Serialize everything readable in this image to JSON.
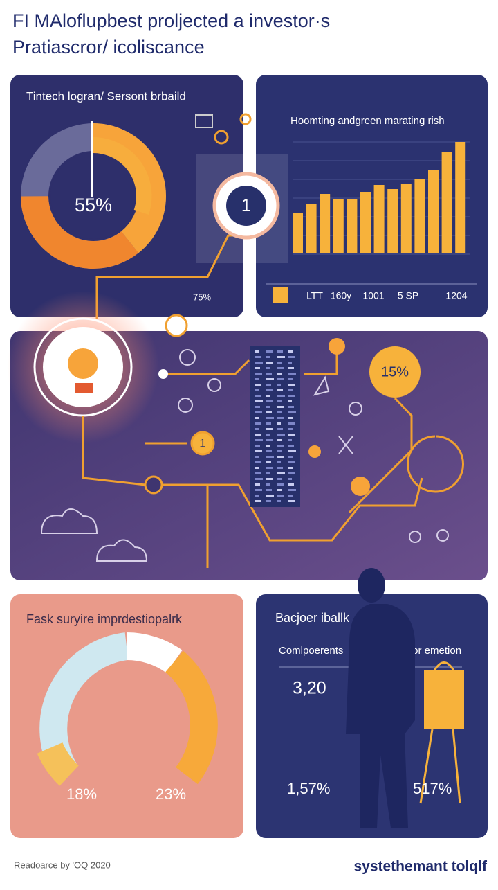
{
  "header": {
    "title": [
      "FI MAloflupbest proljected a investor·s",
      "Pratiascror/ icoliscance"
    ]
  },
  "panels": {
    "donut": {
      "title": "Tintech logran/ Sersont brbaild",
      "center_label": "55%",
      "footnote": "75%"
    },
    "badge": "1",
    "bars": {
      "title": "Hoomting andgreen marating rish",
      "values": [
        58,
        70,
        85,
        78,
        78,
        88,
        98,
        92,
        100,
        106,
        120,
        145,
        160
      ],
      "axis_labels": [
        "LTT",
        "160y",
        "1001",
        "5 SP",
        "1204"
      ]
    },
    "network": {
      "node_label": "1",
      "highlight": "15%"
    },
    "gauge": {
      "title": "Fask suryire imprdestiopalrk",
      "labels": [
        "18%",
        "23%"
      ]
    },
    "summary": {
      "title": "Bacjoer iballk",
      "left_heading": "Comlpoerents",
      "right_heading": "for emetion",
      "metric": "3,20",
      "left_value": "1,57%",
      "right_value": "517%"
    }
  },
  "footer": {
    "source": "Readoarce by 'OQ 2020",
    "brand": "systethemant tolqlf"
  }
}
